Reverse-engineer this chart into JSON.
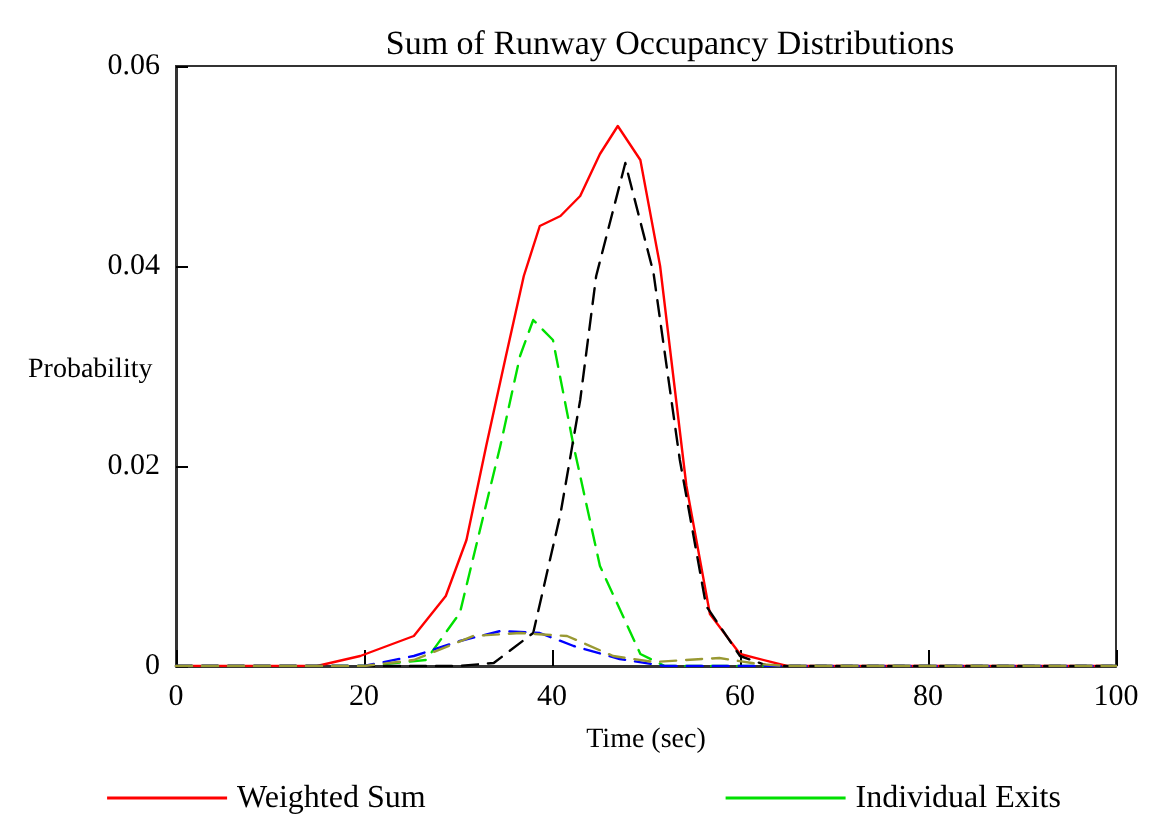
{
  "chart_data": {
    "type": "line",
    "title": "Sum of Runway Occupancy Distributions",
    "xlabel": "Time (sec)",
    "ylabel": "Probability",
    "xlim": [
      0,
      100
    ],
    "xticks": [
      0,
      20,
      40,
      60,
      80,
      100
    ],
    "ylim": [
      0,
      0.06
    ],
    "yticks": [
      0,
      0.02,
      0.04,
      0.06
    ],
    "grid": false,
    "legend": "bottom",
    "marker": "none",
    "series": [
      {
        "name": "Weighted Sum",
        "color": "#ff0000",
        "line_style": "solid",
        "x": [
          0,
          10,
          15,
          19.6,
          25.3,
          28.7,
          30.9,
          33,
          35.1,
          37,
          38.7,
          40.9,
          43,
          45.1,
          47,
          49.4,
          51.5,
          54.3,
          56.8,
          60,
          65,
          80,
          100
        ],
        "values": [
          0,
          0,
          0,
          0.001,
          0.003,
          0.007,
          0.0126,
          0.022,
          0.031,
          0.039,
          0.044,
          0.045,
          0.047,
          0.0512,
          0.054,
          0.0506,
          0.04,
          0.018,
          0.0052,
          0.0012,
          0,
          0,
          0
        ]
      },
      {
        "name": "Individual Exits",
        "color": "#00e000",
        "line_style": "dashed",
        "x": [
          0,
          20,
          26.6,
          30.2,
          34.5,
          36.6,
          38,
          40.1,
          42.3,
          45.1,
          49.4,
          52,
          100
        ],
        "values": [
          0,
          0,
          0.0006,
          0.0053,
          0.022,
          0.031,
          0.0346,
          0.0326,
          0.022,
          0.01,
          0.0012,
          0,
          0
        ]
      },
      {
        "color": "#000000",
        "line_style": "dashed",
        "x": [
          0,
          30,
          33.8,
          38,
          40.9,
          43,
          44.7,
          47.8,
          50.8,
          53.6,
          56.4,
          60,
          63,
          100
        ],
        "values": [
          0,
          0,
          0.0003,
          0.0033,
          0.0152,
          0.0266,
          0.039,
          0.0503,
          0.0393,
          0.0206,
          0.006,
          0.001,
          0,
          0
        ]
      },
      {
        "color": "#0000ff",
        "line_style": "dashed",
        "x": [
          0,
          20,
          25.3,
          30.2,
          34.5,
          38.7,
          42.3,
          47.2,
          52,
          100
        ],
        "values": [
          0,
          0,
          0.001,
          0.0025,
          0.0035,
          0.0033,
          0.002,
          0.0007,
          0,
          0
        ]
      },
      {
        "color": "#999933",
        "line_style": "dashed",
        "x": [
          0,
          20,
          25.3,
          31.6,
          36.6,
          41.6,
          46.5,
          50.8,
          57.8,
          62,
          65,
          100
        ],
        "values": [
          0,
          0,
          0.0006,
          0.003,
          0.0033,
          0.003,
          0.001,
          0.0004,
          0.0008,
          0.0002,
          0,
          0
        ]
      }
    ]
  }
}
